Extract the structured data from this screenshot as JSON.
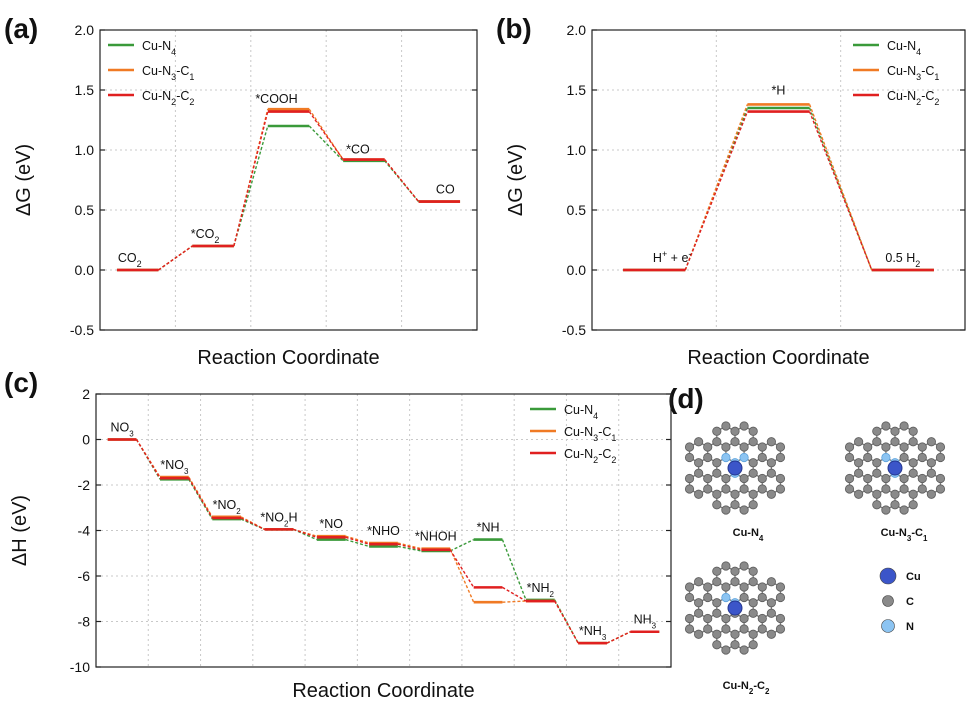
{
  "figure": {
    "panel_labels": [
      "(a)",
      "(b)",
      "(c)",
      "(d)"
    ],
    "colors": {
      "Cu-N4": "#3a9a3a",
      "Cu-N3-C1": "#f07a24",
      "Cu-N2-C2": "#e02020"
    }
  },
  "chart_data": [
    {
      "type": "line",
      "panel": "(a)",
      "xlabel": "Reaction Coordinate",
      "ylabel": "ΔG (eV)",
      "ylim": [
        -0.5,
        2.0
      ],
      "yticks": [
        "-0.5",
        "0.0",
        "0.5",
        "1.0",
        "1.5",
        "2.0"
      ],
      "grid": true,
      "legend_position": "top-left",
      "states": [
        "CO2",
        "*CO2",
        "*COOH",
        "*CO",
        "CO"
      ],
      "state_label_html": [
        "CO<tspan baseline-shift='sub' font-size='9'>2</tspan>",
        "*CO<tspan baseline-shift='sub' font-size='9'>2</tspan>",
        "*COOH",
        "*CO",
        "CO"
      ],
      "series": [
        {
          "name": "Cu-N4",
          "name_html": "Cu-N<tspan baseline-shift='sub' font-size='9'>4</tspan>",
          "color": "#3a9a3a",
          "values": [
            0.0,
            0.2,
            1.2,
            0.91,
            0.57
          ]
        },
        {
          "name": "Cu-N3-C1",
          "name_html": "Cu-N<tspan baseline-shift='sub' font-size='9'>3</tspan>-C<tspan baseline-shift='sub' font-size='9'>1</tspan>",
          "color": "#f07a24",
          "values": [
            0.0,
            0.2,
            1.34,
            0.92,
            0.57
          ]
        },
        {
          "name": "Cu-N2-C2",
          "name_html": "Cu-N<tspan baseline-shift='sub' font-size='9'>2</tspan>-C<tspan baseline-shift='sub' font-size='9'>2</tspan>",
          "color": "#e02020",
          "values": [
            0.0,
            0.2,
            1.32,
            0.92,
            0.57
          ]
        }
      ]
    },
    {
      "type": "line",
      "panel": "(b)",
      "xlabel": "Reaction Coordinate",
      "ylabel": "ΔG (eV)",
      "ylim": [
        -0.5,
        2.0
      ],
      "yticks": [
        "-0.5",
        "0.0",
        "0.5",
        "1.0",
        "1.5",
        "2.0"
      ],
      "grid": true,
      "legend_position": "top-right",
      "states": [
        "H+ + e-",
        "*H",
        "0.5 H2"
      ],
      "state_label_html": [
        "H<tspan baseline-shift='super' font-size='9'>+</tspan> + e<tspan baseline-shift='super' font-size='9'>-</tspan>",
        "*H",
        "0.5 H<tspan baseline-shift='sub' font-size='9'>2</tspan>"
      ],
      "series": [
        {
          "name": "Cu-N4",
          "name_html": "Cu-N<tspan baseline-shift='sub' font-size='9'>4</tspan>",
          "color": "#3a9a3a",
          "values": [
            0.0,
            1.35,
            0.0
          ]
        },
        {
          "name": "Cu-N3-C1",
          "name_html": "Cu-N<tspan baseline-shift='sub' font-size='9'>3</tspan>-C<tspan baseline-shift='sub' font-size='9'>1</tspan>",
          "color": "#f07a24",
          "values": [
            0.0,
            1.38,
            0.0
          ]
        },
        {
          "name": "Cu-N2-C2",
          "name_html": "Cu-N<tspan baseline-shift='sub' font-size='9'>2</tspan>-C<tspan baseline-shift='sub' font-size='9'>2</tspan>",
          "color": "#e02020",
          "values": [
            0.0,
            1.32,
            0.0
          ]
        }
      ]
    },
    {
      "type": "line",
      "panel": "(c)",
      "xlabel": "Reaction Coordinate",
      "ylabel": "ΔH (eV)",
      "ylim": [
        -10,
        2
      ],
      "yticks": [
        "-10",
        "-8",
        "-6",
        "-4",
        "-2",
        "0",
        "2"
      ],
      "grid": true,
      "legend_position": "top-right",
      "states": [
        "NO3",
        "*NO3",
        "*NO2",
        "*NO2H",
        "*NO",
        "*NHO",
        "*NHOH",
        "*NH",
        "*NH2",
        "*NH3",
        "NH3"
      ],
      "state_label_html": [
        "NO<tspan baseline-shift='sub' font-size='8'>3</tspan>",
        "*NO<tspan baseline-shift='sub' font-size='8'>3</tspan>",
        "*NO<tspan baseline-shift='sub' font-size='8'>2</tspan>",
        "*NO<tspan baseline-shift='sub' font-size='8'>2</tspan>H",
        "*NO",
        "*NHO",
        "*NHOH",
        "*NH",
        "*NH<tspan baseline-shift='sub' font-size='8'>2</tspan>",
        "*NH<tspan baseline-shift='sub' font-size='8'>3</tspan>",
        "NH<tspan baseline-shift='sub' font-size='8'>3</tspan>"
      ],
      "series": [
        {
          "name": "Cu-N4",
          "name_html": "Cu-N<tspan baseline-shift='sub' font-size='9'>4</tspan>",
          "color": "#3a9a3a",
          "values": [
            0.0,
            -1.75,
            -3.5,
            -3.95,
            -4.4,
            -4.7,
            -4.9,
            -4.4,
            -7.05,
            -8.95,
            -8.45
          ]
        },
        {
          "name": "Cu-N3-C1",
          "name_html": "Cu-N<tspan baseline-shift='sub' font-size='9'>3</tspan>-C<tspan baseline-shift='sub' font-size='9'>1</tspan>",
          "color": "#f07a24",
          "values": [
            0.0,
            -1.65,
            -3.4,
            -3.95,
            -4.25,
            -4.55,
            -4.8,
            -7.15,
            -7.1,
            -8.95,
            -8.45
          ]
        },
        {
          "name": "Cu-N2-C2",
          "name_html": "Cu-N<tspan baseline-shift='sub' font-size='9'>2</tspan>-C<tspan baseline-shift='sub' font-size='9'>2</tspan>",
          "color": "#e02020",
          "values": [
            0.0,
            -1.7,
            -3.45,
            -3.95,
            -4.3,
            -4.6,
            -4.85,
            -6.5,
            -7.1,
            -8.95,
            -8.45
          ]
        }
      ]
    }
  ],
  "structures": {
    "captions": [
      "Cu-N4",
      "Cu-N3-C1",
      "Cu-N2-C2"
    ],
    "caption_html": [
      "Cu-N<tspan baseline-shift='sub' font-size='8'>4</tspan>",
      "Cu-N<tspan baseline-shift='sub' font-size='8'>3</tspan>-C<tspan baseline-shift='sub' font-size='8'>1</tspan>",
      "Cu-N<tspan baseline-shift='sub' font-size='8'>2</tspan>-C<tspan baseline-shift='sub' font-size='8'>2</tspan>"
    ],
    "legend": [
      "Cu",
      "C",
      "N"
    ],
    "atom_colors": {
      "Cu": "#3b55c9",
      "C": "#8a8a8a",
      "N": "#8cc4f2"
    }
  }
}
